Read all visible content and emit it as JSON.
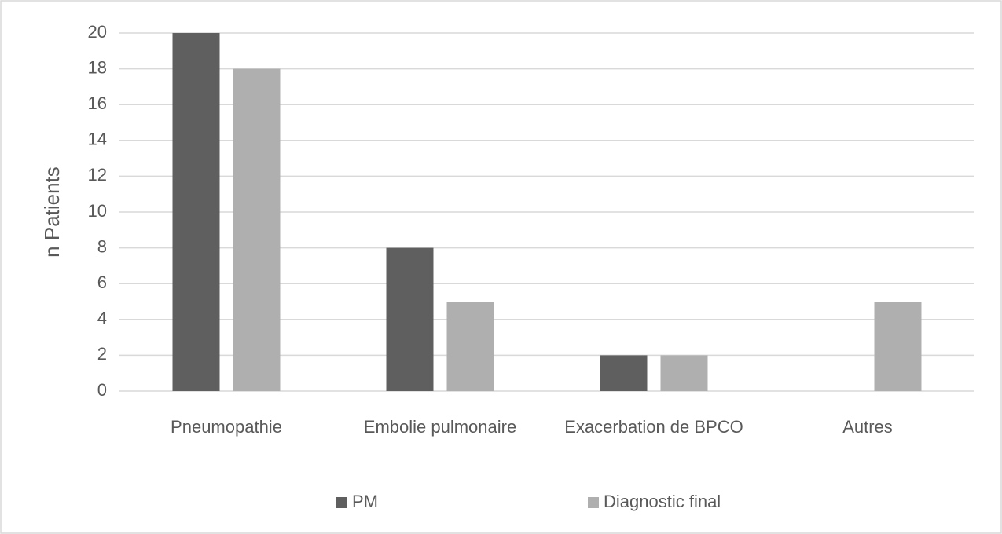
{
  "chart_data": {
    "type": "bar",
    "y_label": "n Patients",
    "categories": [
      "Pneumopathie",
      "Embolie pulmonaire",
      "Exacerbation de BPCO",
      "Autres"
    ],
    "series": [
      {
        "name": "PM",
        "color": "#5f5f5f",
        "values": [
          20,
          8,
          2,
          0
        ]
      },
      {
        "name": "Diagnostic final",
        "color": "#afafaf",
        "values": [
          18,
          5,
          2,
          5
        ]
      }
    ],
    "ylim": [
      0,
      20
    ],
    "yticks": [
      0,
      2,
      4,
      6,
      8,
      10,
      12,
      14,
      16,
      18,
      20
    ],
    "grid": true,
    "legend": "bottom"
  }
}
